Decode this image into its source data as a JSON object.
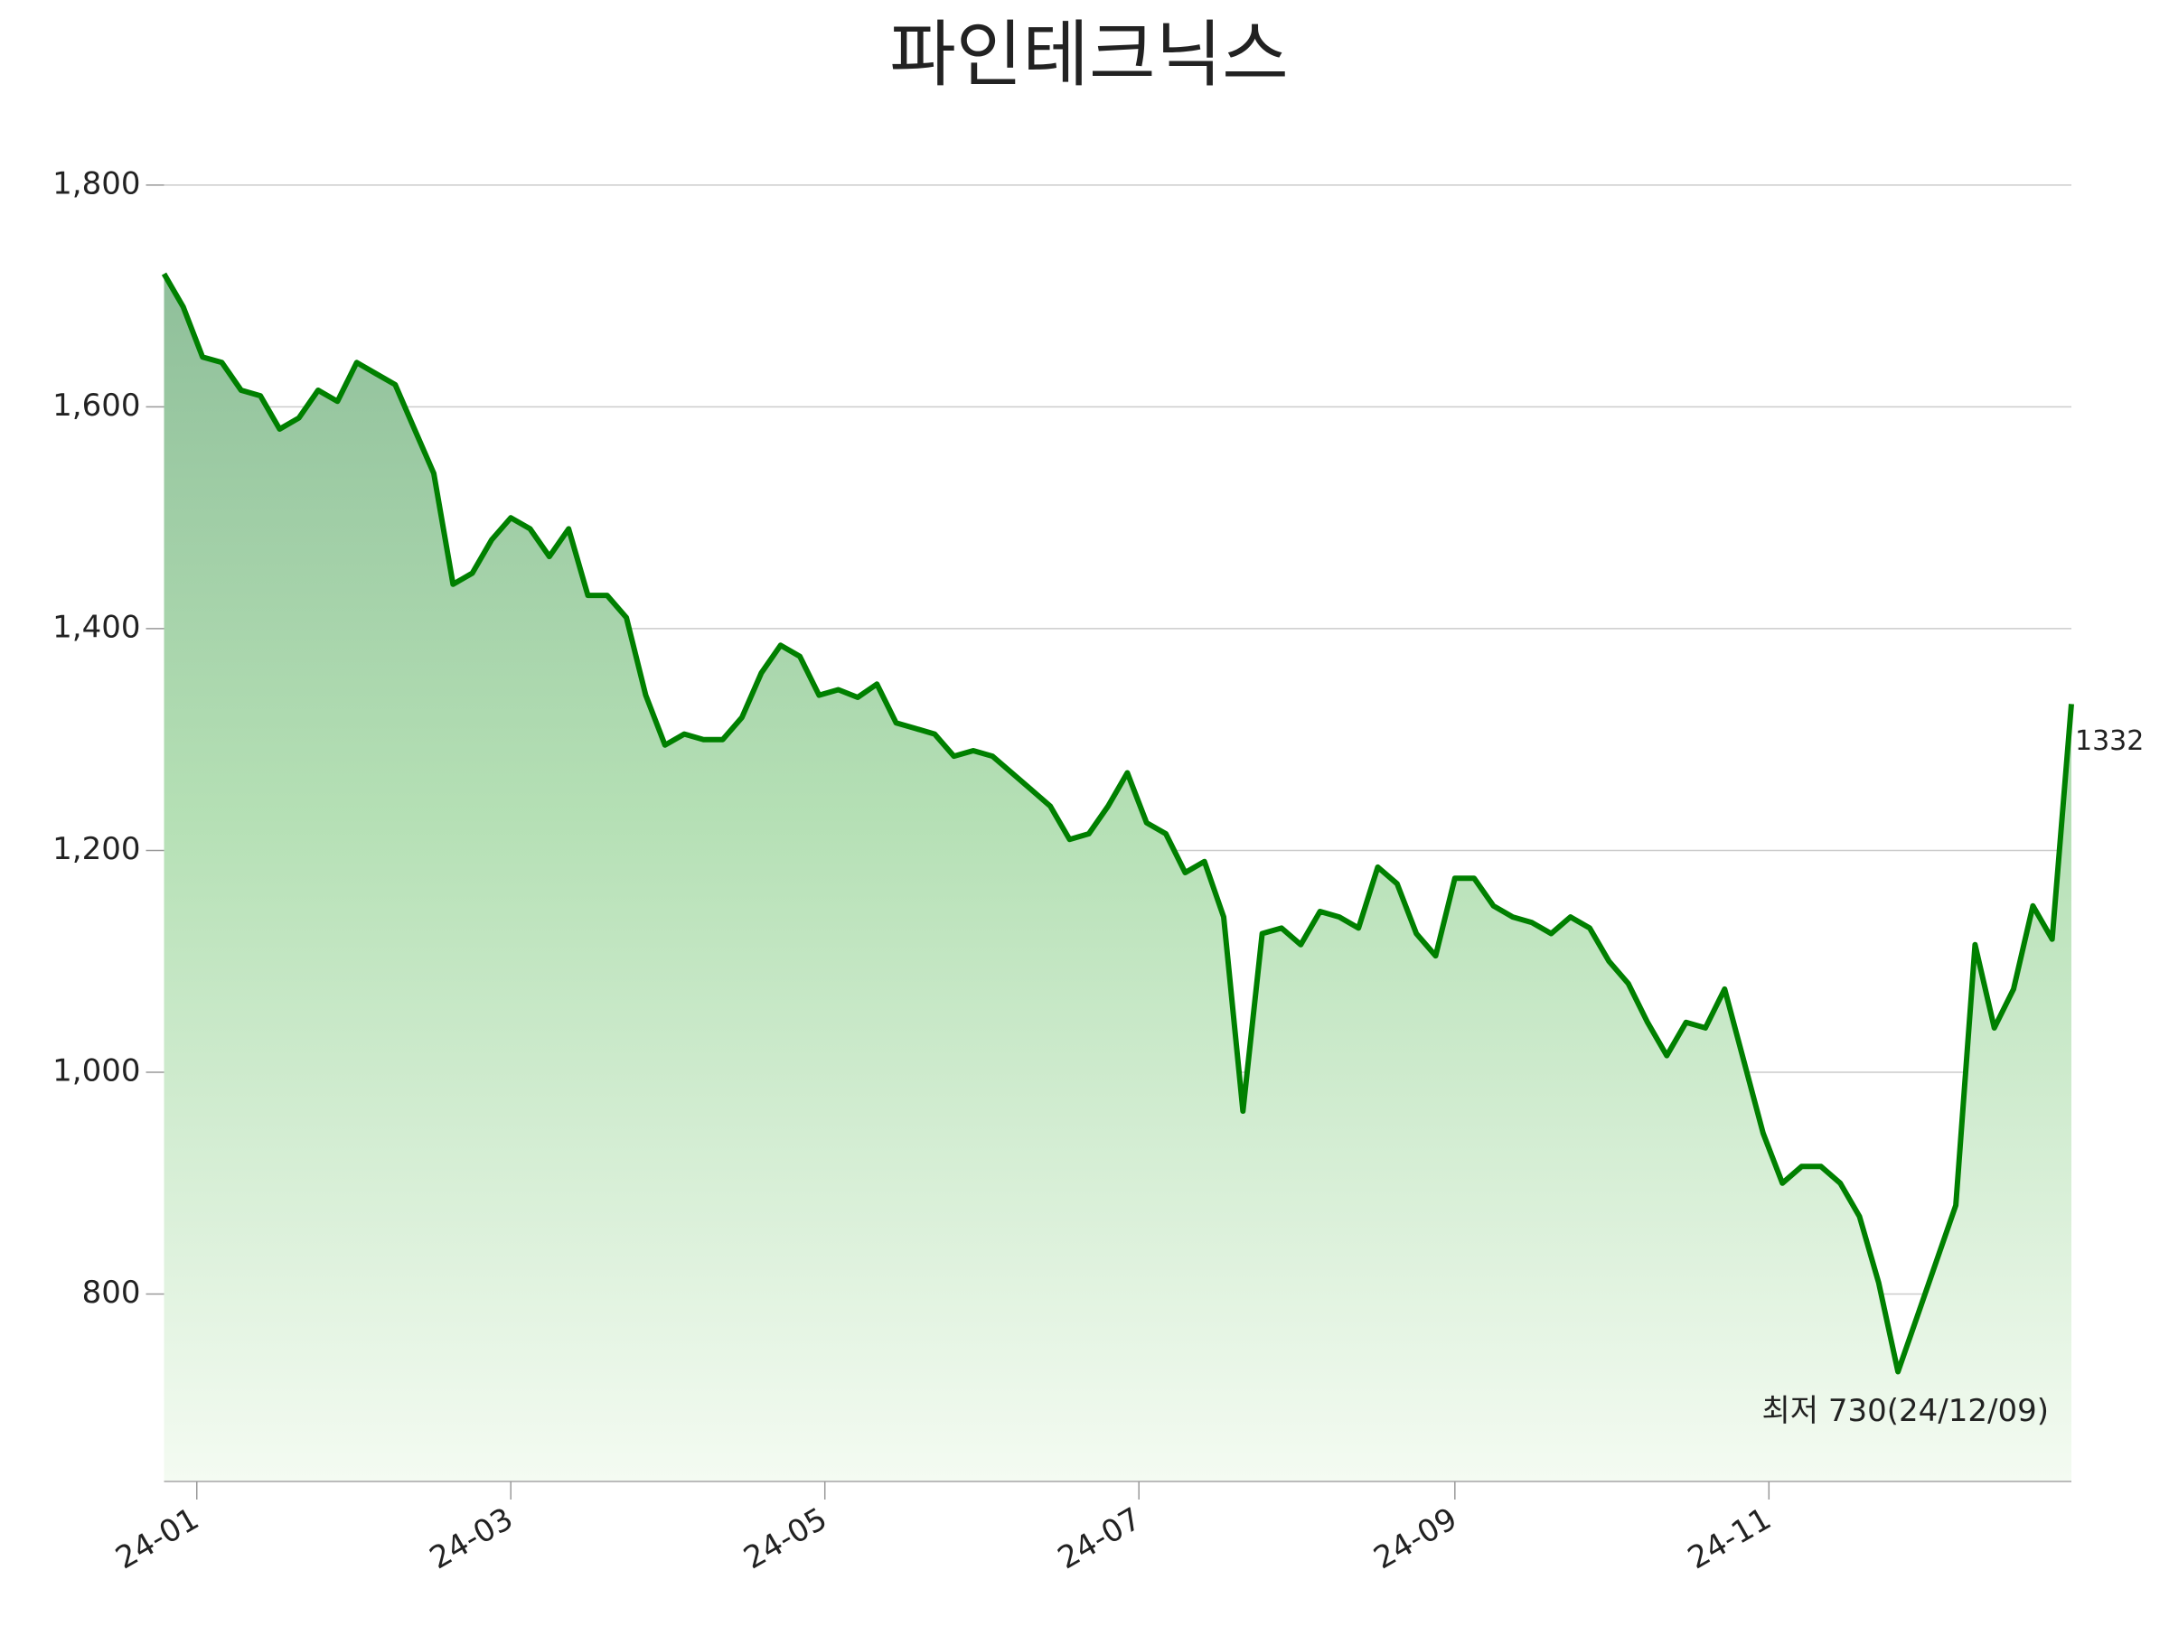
{
  "chart_data": {
    "type": "area",
    "title": "파인테크닉스",
    "color": "#008000",
    "values": [
      1720,
      1690,
      1645,
      1640,
      1615,
      1610,
      1580,
      1590,
      1615,
      1605,
      1640,
      1630,
      1620,
      1580,
      1540,
      1440,
      1450,
      1480,
      1500,
      1490,
      1465,
      1490,
      1430,
      1430,
      1410,
      1340,
      1295,
      1305,
      1300,
      1300,
      1320,
      1360,
      1385,
      1375,
      1340,
      1345,
      1338,
      1350,
      1315,
      1310,
      1305,
      1285,
      1290,
      1285,
      1270,
      1255,
      1240,
      1210,
      1215,
      1240,
      1270,
      1225,
      1215,
      1180,
      1190,
      1140,
      965,
      1125,
      1130,
      1115,
      1145,
      1140,
      1130,
      1185,
      1170,
      1125,
      1105,
      1175,
      1175,
      1150,
      1140,
      1135,
      1125,
      1140,
      1130,
      1100,
      1080,
      1045,
      1015,
      1045,
      1040,
      1075,
      1010,
      945,
      900,
      915,
      915,
      900,
      870,
      810,
      730,
      780,
      830,
      880,
      1115,
      1040,
      1075,
      1150,
      1120,
      1332
    ],
    "xlim": [
      0,
      99
    ],
    "xticks": [
      {
        "value": 1.7,
        "label": "24-01"
      },
      {
        "value": 18,
        "label": "24-03"
      },
      {
        "value": 34.3,
        "label": "24-05"
      },
      {
        "value": 50.6,
        "label": "24-07"
      },
      {
        "value": 67,
        "label": "24-09"
      },
      {
        "value": 83.3,
        "label": "24-11"
      }
    ],
    "ylim": [
      631,
      1817
    ],
    "yticks": [
      800,
      {
        "value": 1000,
        "label": "1,000"
      },
      {
        "value": 1200,
        "label": "1,200"
      },
      {
        "value": 1400,
        "label": "1,400"
      },
      {
        "value": 1600,
        "label": "1,600"
      },
      {
        "value": 1800,
        "label": "1,800"
      }
    ],
    "grid": true,
    "annotations": [
      {
        "text": "1332",
        "color": "#000000"
      },
      {
        "text": "최저 730(24/12/09)",
        "color": "#0000ff"
      }
    ]
  }
}
